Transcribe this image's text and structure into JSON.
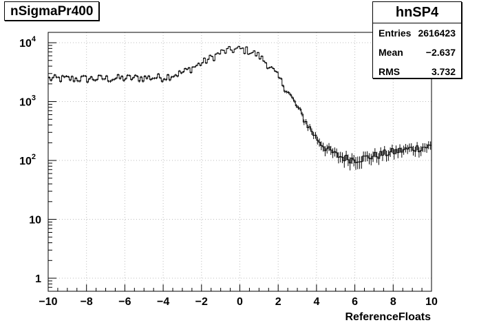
{
  "chart_data": {
    "type": "histogram",
    "title": "nSigmaPr400",
    "xlabel": "ReferenceFloats",
    "ylabel": "",
    "xlim": [
      -10,
      10
    ],
    "ylim": [
      0.6,
      15000
    ],
    "yscale": "log",
    "grid": true,
    "x_ticks": [
      "−10",
      "−8",
      "−6",
      "−4",
      "−2",
      "0",
      "2",
      "4",
      "6",
      "8",
      "10"
    ],
    "y_ticks": [
      {
        "value": 1,
        "base": "1",
        "exp": ""
      },
      {
        "value": 10,
        "base": "10",
        "exp": ""
      },
      {
        "value": 100,
        "base": "10",
        "exp": "2"
      },
      {
        "value": 1000,
        "base": "10",
        "exp": "3"
      },
      {
        "value": 10000,
        "base": "10",
        "exp": "4"
      }
    ],
    "bins": 200,
    "profile": {
      "x": [
        -10,
        -8,
        -6,
        -4,
        -3,
        -2,
        -1,
        -0.5,
        0,
        0.5,
        1,
        1.5,
        2,
        2.5,
        3,
        3.5,
        4,
        4.5,
        5,
        5.5,
        6,
        6.5,
        7,
        8,
        9,
        10
      ],
      "y": [
        2450,
        2450,
        2500,
        2600,
        3100,
        4500,
        6800,
        7500,
        7800,
        7300,
        6000,
        4200,
        2600,
        1500,
        800,
        420,
        240,
        160,
        125,
        110,
        105,
        110,
        120,
        140,
        160,
        175
      ]
    },
    "stats": {
      "name": "hnSP4",
      "rows": [
        {
          "label": "Entries",
          "value": "2616423"
        },
        {
          "label": "Mean",
          "value": "−2.637"
        },
        {
          "label": "RMS",
          "value": "3.732"
        }
      ]
    }
  }
}
